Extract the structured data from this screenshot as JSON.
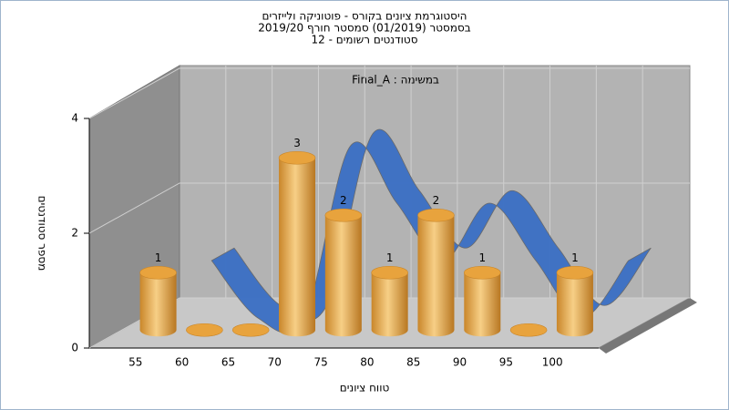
{
  "chart_data": {
    "type": "bar",
    "title": [
      "היסטוגרמת ציונים בקורס - פוטוניקה ולייזרים",
      "בסמסטר  (01/2019)  סמסטר חורף 2019/20",
      "סטודנטים רשומים - 12"
    ],
    "annotation": "Final_A : במשימה",
    "x_label": "טווח ציונים",
    "y_label": "מספר סטודנטים",
    "categories": [
      "55",
      "60",
      "65",
      "70",
      "75",
      "80",
      "85",
      "90",
      "95",
      "100"
    ],
    "values": [
      1,
      0,
      0,
      3,
      2,
      1,
      2,
      1,
      0,
      1
    ],
    "value_labels": [
      "1",
      null,
      null,
      "3",
      "2",
      "1",
      "2",
      "1",
      null,
      "1"
    ],
    "color": "#e8a33d",
    "curve_color": "#3a6fc4",
    "ylim": [
      0,
      4
    ],
    "yticks": [
      0,
      2,
      4
    ],
    "grid": true
  }
}
